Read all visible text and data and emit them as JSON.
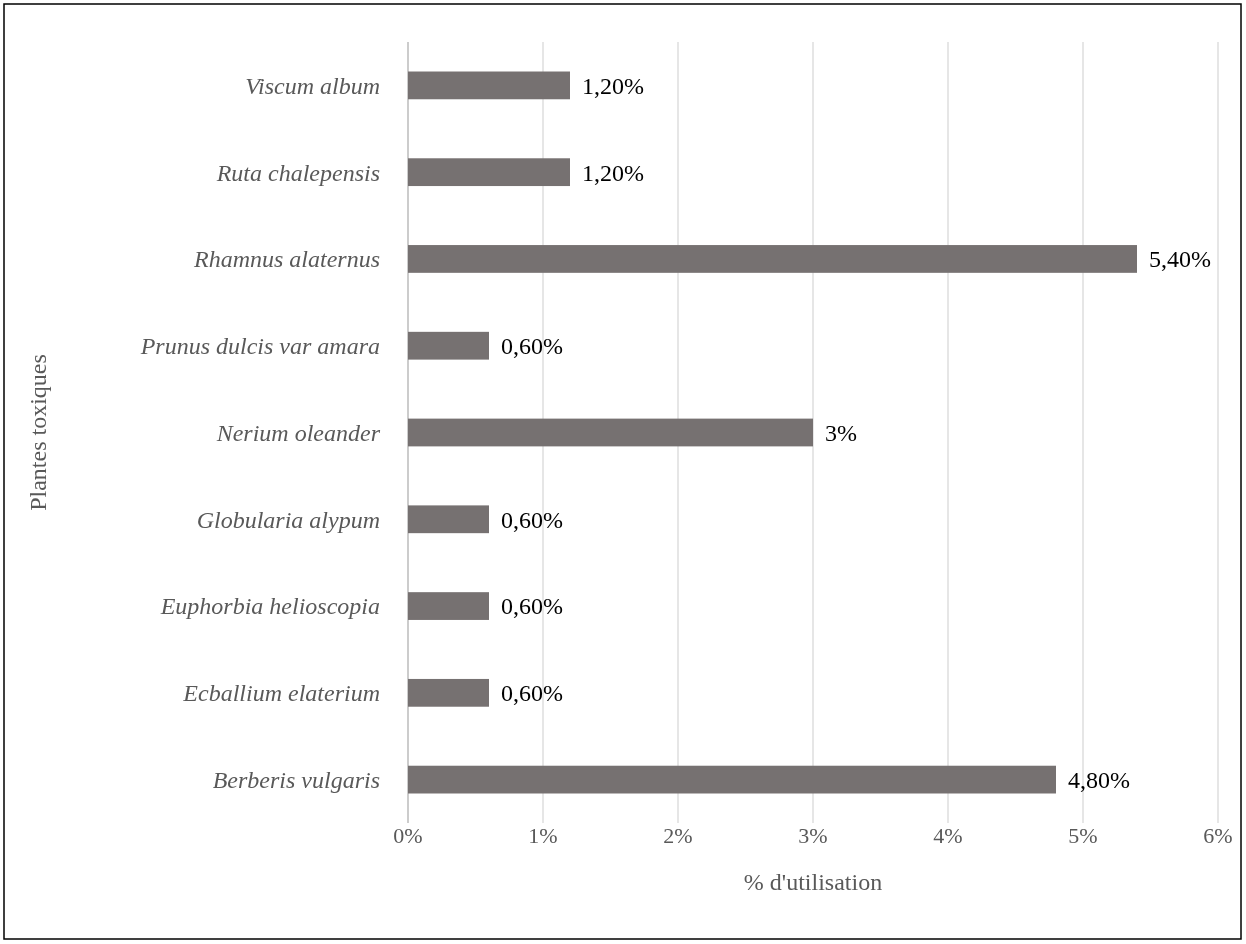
{
  "chart_data": {
    "type": "bar",
    "orientation": "horizontal",
    "xlabel": "% d'utilisation",
    "ylabel": "Plantes toxiques",
    "categories": [
      "Viscum album",
      "Ruta chalepensis",
      "Rhamnus alaternus",
      "Prunus dulcis var amara",
      "Nerium oleander",
      "Globularia alypum",
      "Euphorbia helioscopia",
      "Ecballium elaterium",
      "Berberis vulgaris"
    ],
    "values": [
      1.2,
      1.2,
      5.4,
      0.6,
      3,
      0.6,
      0.6,
      0.6,
      4.8
    ],
    "value_labels": [
      "1,20%",
      "1,20%",
      "5,40%",
      "0,60%",
      "3%",
      "0,60%",
      "0,60%",
      "0,60%",
      "4,80%"
    ],
    "color": "#767171",
    "xlim": [
      0,
      6
    ],
    "xticks": [
      {
        "value": 0,
        "label": "0%"
      },
      {
        "value": 1,
        "label": "1%"
      },
      {
        "value": 2,
        "label": "2%"
      },
      {
        "value": 3,
        "label": "3%"
      },
      {
        "value": 4,
        "label": "4%"
      },
      {
        "value": 5,
        "label": "5%"
      },
      {
        "value": 6,
        "label": "6%"
      }
    ],
    "grid": "x"
  }
}
